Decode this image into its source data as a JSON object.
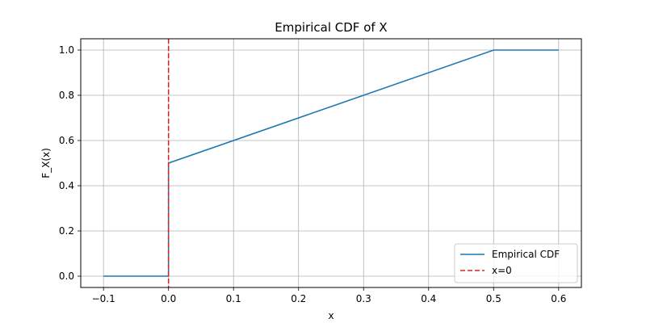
{
  "chart_data": {
    "type": "line",
    "title": "Empirical CDF of X",
    "xlabel": "x",
    "ylabel": "F_X(x)",
    "xlim": [
      -0.135,
      0.635
    ],
    "ylim": [
      -0.05,
      1.05
    ],
    "xticks": [
      -0.1,
      0.0,
      0.1,
      0.2,
      0.3,
      0.4,
      0.5,
      0.6
    ],
    "xtick_labels": [
      "−0.1",
      "0.0",
      "0.1",
      "0.2",
      "0.3",
      "0.4",
      "0.5",
      "0.6"
    ],
    "yticks": [
      0.0,
      0.2,
      0.4,
      0.6,
      0.8,
      1.0
    ],
    "ytick_labels": [
      "0.0",
      "0.2",
      "0.4",
      "0.6",
      "0.8",
      "1.0"
    ],
    "grid": true,
    "legend_position": "lower-right",
    "series": [
      {
        "name": "Empirical CDF",
        "style": "solid",
        "color": "#1f77b4",
        "x": [
          -0.1,
          0.0,
          0.0,
          0.5,
          0.6
        ],
        "y": [
          0.0,
          0.0,
          0.5,
          1.0,
          1.0
        ]
      },
      {
        "name": "x=0",
        "style": "dashed",
        "color": "#d62728",
        "orientation": "vertical",
        "x_value": 0.0
      }
    ]
  }
}
